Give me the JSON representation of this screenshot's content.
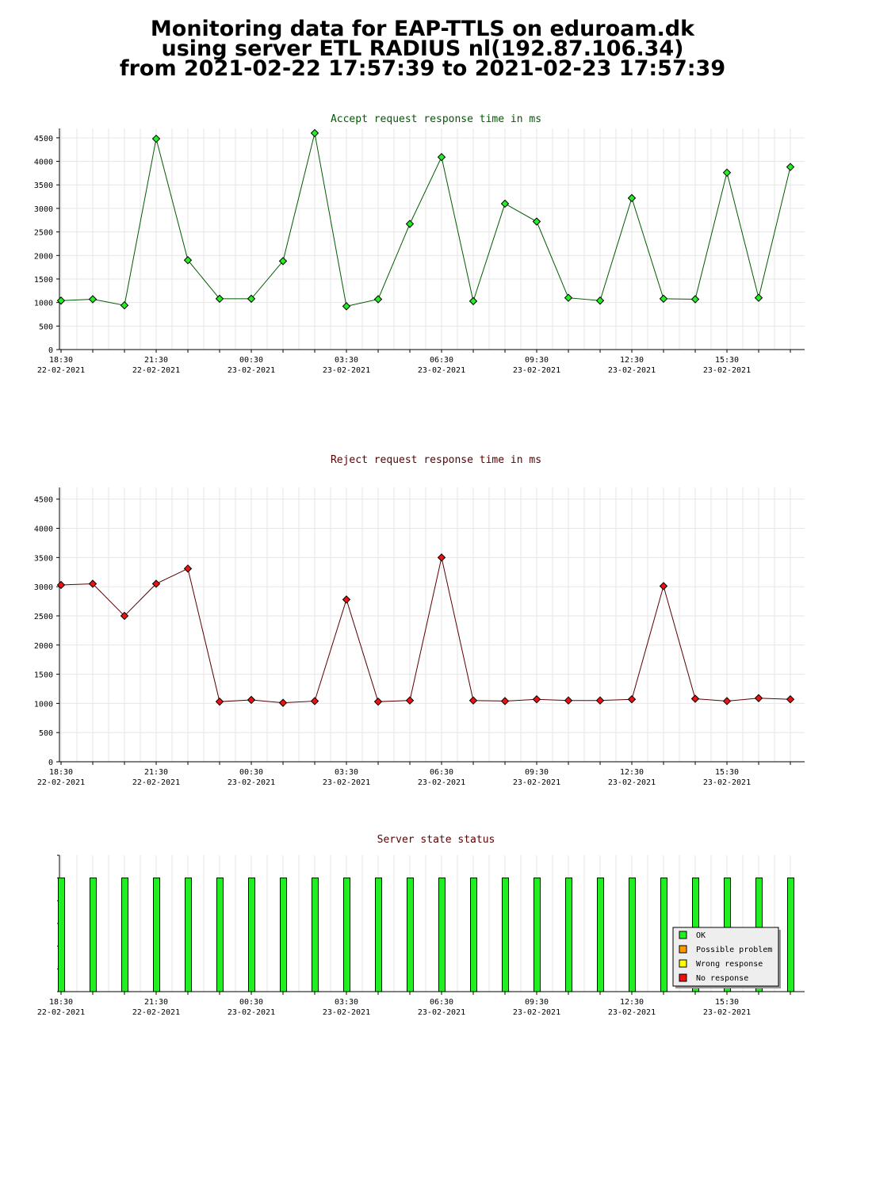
{
  "page": {
    "title_lines": [
      "Monitoring data for EAP-TTLS on eduroam.dk",
      "using server ETL RADIUS nl(192.87.106.34)",
      "from 2021-02-22 17:57:39 to 2021-02-23 17:57:39"
    ]
  },
  "x_ticks": [
    {
      "time": "18:30",
      "date": "22-02-2021"
    },
    {
      "time": "21:30",
      "date": "22-02-2021"
    },
    {
      "time": "00:30",
      "date": "23-02-2021"
    },
    {
      "time": "03:30",
      "date": "23-02-2021"
    },
    {
      "time": "06:30",
      "date": "23-02-2021"
    },
    {
      "time": "09:30",
      "date": "23-02-2021"
    },
    {
      "time": "12:30",
      "date": "23-02-2021"
    },
    {
      "time": "15:30",
      "date": "23-02-2021"
    }
  ],
  "chart_data": [
    {
      "type": "line",
      "title": "Accept request response time in ms",
      "title_color": "#005a00",
      "marker_color": "#22ee22",
      "line_color": "#005a00",
      "ylim": [
        0,
        4700
      ],
      "yticks": [
        0,
        500,
        1000,
        1500,
        2000,
        2500,
        3000,
        3500,
        4000,
        4500
      ],
      "values": [
        1040,
        1070,
        940,
        4480,
        1900,
        1080,
        1080,
        1880,
        4600,
        920,
        1070,
        2670,
        4090,
        1030,
        3100,
        2720,
        1100,
        1040,
        3220,
        1080,
        1070,
        3760,
        1100,
        3880
      ]
    },
    {
      "type": "line",
      "title": "Reject request response time in ms",
      "title_color": "#5a0000",
      "marker_color": "#ee1111",
      "line_color": "#5a0000",
      "ylim": [
        0,
        4700
      ],
      "yticks": [
        0,
        500,
        1000,
        1500,
        2000,
        2500,
        3000,
        3500,
        4000,
        4500
      ],
      "values": [
        3030,
        3050,
        2500,
        3050,
        3310,
        1030,
        1060,
        1010,
        1040,
        2780,
        1030,
        1050,
        3500,
        1050,
        1040,
        1070,
        1050,
        1050,
        1070,
        3010,
        1080,
        1040,
        1090,
        1070
      ]
    },
    {
      "type": "bar",
      "title": "Server state status",
      "title_color": "#5a0000",
      "ylim": [
        0,
        1.2
      ],
      "statuses": [
        "OK",
        "OK",
        "OK",
        "OK",
        "OK",
        "OK",
        "OK",
        "OK",
        "OK",
        "OK",
        "OK",
        "OK",
        "OK",
        "OK",
        "OK",
        "OK",
        "OK",
        "OK",
        "OK",
        "OK",
        "OK",
        "OK",
        "OK",
        "OK"
      ],
      "legend": [
        {
          "label": "OK",
          "color": "#22ee22"
        },
        {
          "label": "Possible problem",
          "color": "#ff9900"
        },
        {
          "label": "Wrong response",
          "color": "#ffff00"
        },
        {
          "label": "No response",
          "color": "#ee1111"
        }
      ],
      "legend_position": "bottom-right"
    }
  ]
}
